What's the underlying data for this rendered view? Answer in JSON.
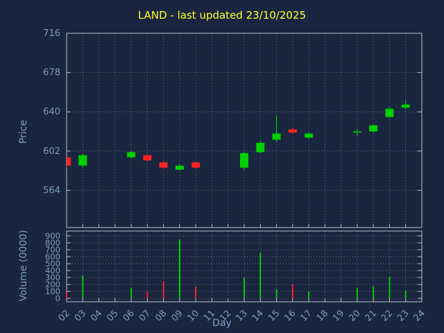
{
  "title": "LAND - last updated 23/10/2025",
  "axes": {
    "price_label": "Price",
    "volume_label": "Volume (0000)",
    "x_label": "Day"
  },
  "colors": {
    "background": "#1a2540",
    "title": "#ffff33",
    "axis_text": "#7f9dbf",
    "grid": "#8a98a8",
    "border": "#b8c4d0",
    "up": "#00d000",
    "down": "#ff2222"
  },
  "chart_data": {
    "type": "candlestick",
    "title": "LAND - last updated 23/10/2025",
    "xlabel": "Day",
    "ylabel_price": "Price",
    "ylabel_volume": "Volume (0000)",
    "grid": true,
    "legend": false,
    "x_ticks": [
      "02",
      "03",
      "04",
      "05",
      "06",
      "07",
      "08",
      "09",
      "10",
      "11",
      "12",
      "13",
      "14",
      "15",
      "16",
      "17",
      "18",
      "19",
      "20",
      "21",
      "22",
      "23",
      "24"
    ],
    "x_range": [
      2,
      24
    ],
    "price_ticks": [
      564,
      602,
      640,
      678,
      716
    ],
    "price_range": [
      528,
      716
    ],
    "volume_ticks": [
      0,
      100,
      200,
      300,
      400,
      500,
      600,
      700,
      800,
      900
    ],
    "volume_range": [
      0,
      950
    ],
    "candles": [
      {
        "day": 2,
        "open": 596,
        "high": 597,
        "low": 585,
        "close": 588
      },
      {
        "day": 3,
        "open": 588,
        "high": 599,
        "low": 586,
        "close": 598
      },
      {
        "day": 6,
        "open": 596,
        "high": 602,
        "low": 595,
        "close": 601
      },
      {
        "day": 7,
        "open": 598,
        "high": 599,
        "low": 592,
        "close": 593
      },
      {
        "day": 8,
        "open": 591,
        "high": 592,
        "low": 585,
        "close": 586
      },
      {
        "day": 9,
        "open": 584,
        "high": 589,
        "low": 583,
        "close": 588
      },
      {
        "day": 10,
        "open": 591,
        "high": 592,
        "low": 585,
        "close": 586
      },
      {
        "day": 13,
        "open": 586,
        "high": 601,
        "low": 584,
        "close": 600
      },
      {
        "day": 14,
        "open": 601,
        "high": 612,
        "low": 600,
        "close": 610
      },
      {
        "day": 15,
        "open": 613,
        "high": 636,
        "low": 611,
        "close": 619
      },
      {
        "day": 16,
        "open": 623,
        "high": 625,
        "low": 619,
        "close": 620
      },
      {
        "day": 17,
        "open": 615,
        "high": 620,
        "low": 614,
        "close": 619
      },
      {
        "day": 20,
        "open": 620,
        "high": 623,
        "low": 617,
        "close": 621
      },
      {
        "day": 21,
        "open": 621,
        "high": 628,
        "low": 620,
        "close": 627
      },
      {
        "day": 22,
        "open": 635,
        "high": 645,
        "low": 634,
        "close": 643
      },
      {
        "day": 23,
        "open": 644,
        "high": 651,
        "low": 642,
        "close": 647
      }
    ],
    "volumes": [
      {
        "day": 2,
        "value": 90,
        "direction": "down"
      },
      {
        "day": 3,
        "value": 330,
        "direction": "up"
      },
      {
        "day": 6,
        "value": 150,
        "direction": "up"
      },
      {
        "day": 7,
        "value": 100,
        "direction": "down"
      },
      {
        "day": 8,
        "value": 240,
        "direction": "down"
      },
      {
        "day": 9,
        "value": 850,
        "direction": "up"
      },
      {
        "day": 10,
        "value": 170,
        "direction": "down"
      },
      {
        "day": 13,
        "value": 300,
        "direction": "up"
      },
      {
        "day": 14,
        "value": 660,
        "direction": "up"
      },
      {
        "day": 15,
        "value": 130,
        "direction": "up"
      },
      {
        "day": 16,
        "value": 200,
        "direction": "down"
      },
      {
        "day": 17,
        "value": 100,
        "direction": "up"
      },
      {
        "day": 20,
        "value": 150,
        "direction": "up"
      },
      {
        "day": 21,
        "value": 180,
        "direction": "up"
      },
      {
        "day": 22,
        "value": 310,
        "direction": "up"
      },
      {
        "day": 23,
        "value": 110,
        "direction": "up"
      }
    ]
  }
}
